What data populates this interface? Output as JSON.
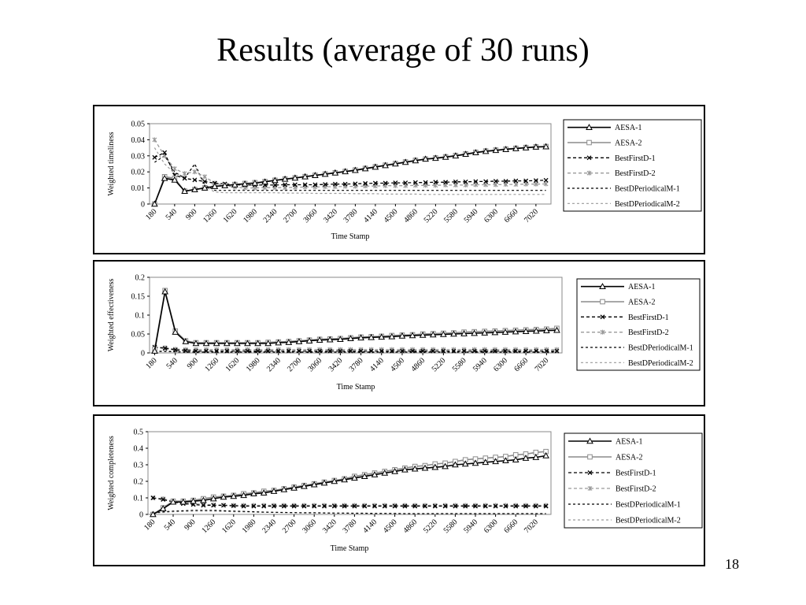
{
  "slide": {
    "title": "Results (average of 30 runs)",
    "page_number": "18"
  },
  "legend_styles": {
    "AESA-1": {
      "color": "#000000",
      "dash": "",
      "marker": "triangle",
      "width": 1.6
    },
    "AESA-2": {
      "color": "#8c8c8c",
      "dash": "",
      "marker": "square",
      "width": 1.6
    },
    "BestFirstD-1": {
      "color": "#000000",
      "dash": "4,3",
      "marker": "x",
      "width": 1.3
    },
    "BestFirstD-2": {
      "color": "#9a9a9a",
      "dash": "4,3",
      "marker": "star",
      "width": 1.3
    },
    "BestDPeriodicalM-1": {
      "color": "#000000",
      "dash": "3,3",
      "marker": "none",
      "width": 1.2
    },
    "BestDPeriodicalM-2": {
      "color": "#9a9a9a",
      "dash": "3,3",
      "marker": "none",
      "width": 1.2
    }
  },
  "chart_data": [
    {
      "type": "line",
      "title": "",
      "xlabel": "Time Stamp",
      "ylabel": "Weighted timeliness",
      "ylim": [
        0,
        0.05
      ],
      "yticks": [
        "0",
        "0.01",
        "0.02",
        "0.03",
        "0.04",
        "0.05"
      ],
      "x": [
        180,
        360,
        540,
        720,
        900,
        1080,
        1260,
        1440,
        1620,
        1800,
        1980,
        2160,
        2340,
        2520,
        2700,
        2880,
        3060,
        3240,
        3420,
        3600,
        3780,
        3960,
        4140,
        4320,
        4500,
        4680,
        4860,
        5040,
        5220,
        5400,
        5580,
        5760,
        5940,
        6120,
        6300,
        6480,
        6660,
        6840,
        7020,
        7200
      ],
      "xtick_labels": [
        "180",
        "540",
        "900",
        "1260",
        "1620",
        "1980",
        "2340",
        "2700",
        "3060",
        "3420",
        "3780",
        "4140",
        "4500",
        "4860",
        "5220",
        "5580",
        "5940",
        "6300",
        "6660",
        "7020"
      ],
      "legend": "right",
      "series": [
        {
          "name": "AESA-1",
          "values": [
            0.0,
            0.016,
            0.015,
            0.008,
            0.009,
            0.01,
            0.011,
            0.0115,
            0.012,
            0.0125,
            0.013,
            0.0138,
            0.0147,
            0.0155,
            0.0162,
            0.017,
            0.0178,
            0.0186,
            0.0194,
            0.0202,
            0.021,
            0.022,
            0.023,
            0.024,
            0.025,
            0.026,
            0.027,
            0.028,
            0.0285,
            0.0292,
            0.03,
            0.031,
            0.032,
            0.0328,
            0.0334,
            0.034,
            0.0345,
            0.035,
            0.0355,
            0.0357
          ]
        },
        {
          "name": "AESA-2",
          "values": [
            0.0,
            0.017,
            0.016,
            0.008,
            0.009,
            0.01,
            0.011,
            0.0115,
            0.0122,
            0.0128,
            0.0133,
            0.014,
            0.0148,
            0.0156,
            0.0163,
            0.0171,
            0.0179,
            0.0187,
            0.0195,
            0.0203,
            0.0212,
            0.0222,
            0.0232,
            0.0242,
            0.0252,
            0.0262,
            0.0272,
            0.028,
            0.0287,
            0.0294,
            0.0302,
            0.0312,
            0.0322,
            0.033,
            0.0336,
            0.0342,
            0.0347,
            0.0352,
            0.0356,
            0.0358
          ]
        },
        {
          "name": "BestFirstD-1",
          "values": [
            0.029,
            0.032,
            0.018,
            0.016,
            0.015,
            0.014,
            0.013,
            0.0125,
            0.012,
            0.0118,
            0.0118,
            0.0118,
            0.0118,
            0.012,
            0.012,
            0.012,
            0.012,
            0.0122,
            0.0124,
            0.0124,
            0.0126,
            0.0128,
            0.013,
            0.013,
            0.0132,
            0.0132,
            0.0134,
            0.0134,
            0.0136,
            0.0136,
            0.0138,
            0.0138,
            0.014,
            0.014,
            0.0142,
            0.0142,
            0.0144,
            0.0144,
            0.0146,
            0.0148
          ]
        },
        {
          "name": "BestFirstD-2",
          "values": [
            0.04,
            0.03,
            0.022,
            0.019,
            0.02,
            0.017,
            0.013,
            0.0115,
            0.0105,
            0.01,
            0.01,
            0.0102,
            0.0102,
            0.0102,
            0.0104,
            0.0106,
            0.0106,
            0.0108,
            0.0108,
            0.011,
            0.011,
            0.0112,
            0.0112,
            0.0114,
            0.0114,
            0.0114,
            0.0116,
            0.0116,
            0.0116,
            0.0118,
            0.0118,
            0.0118,
            0.012,
            0.012,
            0.012,
            0.0122,
            0.0122,
            0.0124,
            0.0124,
            0.0125
          ]
        },
        {
          "name": "BestDPeriodicalM-1",
          "values": [
            0.026,
            0.03,
            0.02,
            0.016,
            0.025,
            0.012,
            0.0085,
            0.0085,
            0.0085,
            0.0085,
            0.0085,
            0.0085,
            0.0085,
            0.0085,
            0.0085,
            0.0085,
            0.0085,
            0.0085,
            0.0085,
            0.0085,
            0.0085,
            0.0085,
            0.0085,
            0.0085,
            0.0085,
            0.0085,
            0.0085,
            0.0085,
            0.0085,
            0.0085,
            0.0085,
            0.0085,
            0.0085,
            0.0085,
            0.0085,
            0.0085,
            0.0085,
            0.0085,
            0.0085,
            0.0085
          ]
        },
        {
          "name": "BestDPeriodicalM-2",
          "values": [
            0.035,
            0.025,
            0.019,
            0.017,
            0.024,
            0.011,
            0.0075,
            0.007,
            0.007,
            0.007,
            0.007,
            0.007,
            0.007,
            0.0068,
            0.0068,
            0.0068,
            0.0066,
            0.0066,
            0.0066,
            0.0066,
            0.0064,
            0.0064,
            0.0064,
            0.0062,
            0.0062,
            0.0062,
            0.0062,
            0.006,
            0.006,
            0.006,
            0.006,
            0.006,
            0.006,
            0.006,
            0.006,
            0.006,
            0.006,
            0.006,
            0.006,
            0.006
          ]
        }
      ]
    },
    {
      "type": "line",
      "title": "",
      "xlabel": "Time Stamp",
      "ylabel": "Weighted effectiveness",
      "ylim": [
        0,
        0.2
      ],
      "yticks": [
        "0",
        "0.05",
        "0.1",
        "0.15",
        "0.2"
      ],
      "x": [
        180,
        360,
        540,
        720,
        900,
        1080,
        1260,
        1440,
        1620,
        1800,
        1980,
        2160,
        2340,
        2520,
        2700,
        2880,
        3060,
        3240,
        3420,
        3600,
        3780,
        3960,
        4140,
        4320,
        4500,
        4680,
        4860,
        5040,
        5220,
        5400,
        5580,
        5760,
        5940,
        6120,
        6300,
        6480,
        6660,
        6840,
        7020,
        7200
      ],
      "xtick_labels": [
        "180",
        "540",
        "900",
        "1260",
        "1620",
        "1980",
        "2340",
        "2700",
        "3060",
        "3420",
        "3780",
        "4140",
        "4500",
        "4860",
        "5220",
        "5580",
        "5940",
        "6300",
        "6660",
        "7020"
      ],
      "legend": "right",
      "series": [
        {
          "name": "AESA-1",
          "values": [
            0.005,
            0.162,
            0.055,
            0.03,
            0.025,
            0.025,
            0.025,
            0.025,
            0.025,
            0.025,
            0.025,
            0.025,
            0.027,
            0.028,
            0.03,
            0.032,
            0.034,
            0.035,
            0.036,
            0.038,
            0.04,
            0.041,
            0.042,
            0.043,
            0.045,
            0.046,
            0.047,
            0.048,
            0.049,
            0.05,
            0.051,
            0.052,
            0.053,
            0.054,
            0.055,
            0.056,
            0.057,
            0.058,
            0.059,
            0.06
          ]
        },
        {
          "name": "AESA-2",
          "values": [
            0.01,
            0.165,
            0.058,
            0.032,
            0.027,
            0.027,
            0.027,
            0.027,
            0.027,
            0.027,
            0.027,
            0.028,
            0.029,
            0.03,
            0.032,
            0.034,
            0.036,
            0.037,
            0.038,
            0.04,
            0.042,
            0.043,
            0.044,
            0.046,
            0.047,
            0.048,
            0.05,
            0.051,
            0.052,
            0.053,
            0.055,
            0.056,
            0.057,
            0.058,
            0.059,
            0.06,
            0.061,
            0.062,
            0.063,
            0.065
          ]
        },
        {
          "name": "BestFirstD-1",
          "values": [
            0.015,
            0.012,
            0.008,
            0.006,
            0.005,
            0.005,
            0.005,
            0.005,
            0.005,
            0.005,
            0.005,
            0.005,
            0.005,
            0.005,
            0.005,
            0.005,
            0.005,
            0.005,
            0.005,
            0.005,
            0.005,
            0.005,
            0.005,
            0.005,
            0.005,
            0.005,
            0.005,
            0.005,
            0.005,
            0.005,
            0.005,
            0.005,
            0.005,
            0.005,
            0.005,
            0.005,
            0.005,
            0.005,
            0.005,
            0.005
          ]
        },
        {
          "name": "BestFirstD-2",
          "values": [
            0.016,
            0.014,
            0.01,
            0.009,
            0.009,
            0.009,
            0.009,
            0.009,
            0.009,
            0.009,
            0.009,
            0.009,
            0.009,
            0.009,
            0.009,
            0.009,
            0.009,
            0.009,
            0.009,
            0.009,
            0.009,
            0.009,
            0.009,
            0.009,
            0.009,
            0.009,
            0.009,
            0.009,
            0.009,
            0.009,
            0.009,
            0.009,
            0.009,
            0.009,
            0.009,
            0.009,
            0.009,
            0.009,
            0.009,
            0.009
          ]
        },
        {
          "name": "BestDPeriodicalM-1",
          "values": [
            0.004,
            0.004,
            0.003,
            0.002,
            0.002,
            0.002,
            0.002,
            0.002,
            0.002,
            0.002,
            0.002,
            0.002,
            0.002,
            0.002,
            0.002,
            0.002,
            0.002,
            0.002,
            0.002,
            0.002,
            0.002,
            0.002,
            0.002,
            0.002,
            0.002,
            0.002,
            0.002,
            0.002,
            0.002,
            0.002,
            0.002,
            0.002,
            0.002,
            0.002,
            0.002,
            0.002,
            0.002,
            0.002,
            0.002,
            0.002
          ]
        },
        {
          "name": "BestDPeriodicalM-2",
          "values": [
            0.005,
            0.005,
            0.004,
            0.003,
            0.003,
            0.003,
            0.003,
            0.003,
            0.003,
            0.003,
            0.003,
            0.003,
            0.003,
            0.003,
            0.003,
            0.003,
            0.003,
            0.003,
            0.003,
            0.003,
            0.003,
            0.003,
            0.003,
            0.003,
            0.003,
            0.003,
            0.003,
            0.003,
            0.003,
            0.003,
            0.003,
            0.003,
            0.003,
            0.003,
            0.003,
            0.003,
            0.003,
            0.003,
            0.003,
            0.003
          ]
        }
      ]
    },
    {
      "type": "line",
      "title": "",
      "xlabel": "Time Stamp",
      "ylabel": "Weighted completeness",
      "ylim": [
        0,
        0.5
      ],
      "yticks": [
        "0",
        "0.1",
        "0.2",
        "0.3",
        "0.4",
        "0.5"
      ],
      "x": [
        180,
        360,
        540,
        720,
        900,
        1080,
        1260,
        1440,
        1620,
        1800,
        1980,
        2160,
        2340,
        2520,
        2700,
        2880,
        3060,
        3240,
        3420,
        3600,
        3780,
        3960,
        4140,
        4320,
        4500,
        4680,
        4860,
        5040,
        5220,
        5400,
        5580,
        5760,
        5940,
        6120,
        6300,
        6480,
        6660,
        6840,
        7020,
        7200
      ],
      "xtick_labels": [
        "180",
        "540",
        "900",
        "1260",
        "1620",
        "1980",
        "2340",
        "2700",
        "3060",
        "3420",
        "3780",
        "4140",
        "4500",
        "4860",
        "5220",
        "5580",
        "5940",
        "6300",
        "6660",
        "7020"
      ],
      "legend": "right",
      "series": [
        {
          "name": "AESA-1",
          "values": [
            0.0,
            0.035,
            0.075,
            0.075,
            0.08,
            0.085,
            0.095,
            0.105,
            0.11,
            0.115,
            0.125,
            0.13,
            0.14,
            0.15,
            0.16,
            0.17,
            0.18,
            0.19,
            0.2,
            0.21,
            0.22,
            0.23,
            0.24,
            0.25,
            0.26,
            0.27,
            0.275,
            0.28,
            0.285,
            0.29,
            0.3,
            0.305,
            0.31,
            0.315,
            0.32,
            0.325,
            0.33,
            0.34,
            0.345,
            0.355
          ]
        },
        {
          "name": "AESA-2",
          "values": [
            0.0,
            0.04,
            0.08,
            0.08,
            0.085,
            0.095,
            0.105,
            0.11,
            0.115,
            0.125,
            0.13,
            0.14,
            0.145,
            0.155,
            0.165,
            0.175,
            0.185,
            0.195,
            0.205,
            0.215,
            0.23,
            0.24,
            0.25,
            0.26,
            0.27,
            0.28,
            0.29,
            0.295,
            0.305,
            0.31,
            0.32,
            0.33,
            0.335,
            0.34,
            0.345,
            0.35,
            0.36,
            0.365,
            0.375,
            0.38
          ]
        },
        {
          "name": "BestFirstD-1",
          "values": [
            0.1,
            0.09,
            0.075,
            0.065,
            0.06,
            0.055,
            0.055,
            0.055,
            0.052,
            0.05,
            0.05,
            0.05,
            0.05,
            0.05,
            0.05,
            0.05,
            0.05,
            0.05,
            0.05,
            0.05,
            0.05,
            0.05,
            0.05,
            0.05,
            0.05,
            0.05,
            0.05,
            0.05,
            0.05,
            0.05,
            0.05,
            0.05,
            0.05,
            0.05,
            0.05,
            0.05,
            0.05,
            0.05,
            0.05,
            0.05
          ]
        },
        {
          "name": "BestFirstD-2",
          "values": [
            0.1,
            0.095,
            0.08,
            0.07,
            0.065,
            0.06,
            0.058,
            0.056,
            0.055,
            0.055,
            0.055,
            0.055,
            0.055,
            0.055,
            0.055,
            0.055,
            0.055,
            0.055,
            0.055,
            0.055,
            0.055,
            0.055,
            0.055,
            0.055,
            0.055,
            0.055,
            0.055,
            0.055,
            0.055,
            0.055,
            0.055,
            0.055,
            0.055,
            0.055,
            0.055,
            0.055,
            0.055,
            0.055,
            0.055,
            0.055
          ]
        },
        {
          "name": "BestDPeriodicalM-1",
          "values": [
            0.01,
            0.015,
            0.02,
            0.022,
            0.025,
            0.025,
            0.025,
            0.022,
            0.02,
            0.018,
            0.016,
            0.014,
            0.013,
            0.012,
            0.011,
            0.01,
            0.01,
            0.009,
            0.008,
            0.008,
            0.007,
            0.007,
            0.006,
            0.006,
            0.006,
            0.005,
            0.005,
            0.005,
            0.005,
            0.005,
            0.005,
            0.005,
            0.005,
            0.005,
            0.005,
            0.005,
            0.005,
            0.005,
            0.005,
            0.005
          ]
        },
        {
          "name": "BestDPeriodicalM-2",
          "values": [
            0.008,
            0.012,
            0.016,
            0.018,
            0.02,
            0.02,
            0.02,
            0.018,
            0.016,
            0.015,
            0.014,
            0.013,
            0.012,
            0.011,
            0.01,
            0.009,
            0.009,
            0.008,
            0.007,
            0.007,
            0.006,
            0.006,
            0.005,
            0.005,
            0.005,
            0.004,
            0.004,
            0.004,
            0.004,
            0.004,
            0.004,
            0.004,
            0.004,
            0.004,
            0.004,
            0.004,
            0.004,
            0.004,
            0.004,
            0.004
          ]
        }
      ]
    }
  ]
}
